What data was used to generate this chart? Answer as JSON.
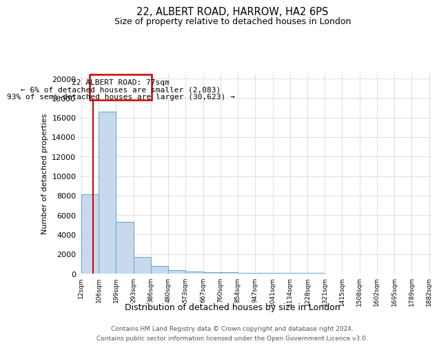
{
  "title": "22, ALBERT ROAD, HARROW, HA2 6PS",
  "subtitle": "Size of property relative to detached houses in London",
  "xlabel": "Distribution of detached houses by size in London",
  "ylabel": "Number of detached properties",
  "annotation_line1": "22 ALBERT ROAD: 77sqm",
  "annotation_line2": "← 6% of detached houses are smaller (2,083)",
  "annotation_line3": "93% of semi-detached houses are larger (30,623) →",
  "property_sqm": 77,
  "bar_left_edges": [
    12,
    106,
    199,
    293,
    386,
    480,
    573,
    667,
    760,
    854,
    947,
    1041,
    1134,
    1228,
    1321,
    1415,
    1508,
    1602,
    1695,
    1789
  ],
  "bar_widths": [
    94,
    93,
    94,
    93,
    94,
    93,
    94,
    93,
    94,
    93,
    94,
    93,
    94,
    93,
    94,
    93,
    94,
    93,
    94,
    93
  ],
  "bar_heights": [
    8100,
    16600,
    5300,
    1700,
    800,
    380,
    230,
    160,
    120,
    85,
    75,
    60,
    50,
    40,
    35,
    25,
    20,
    18,
    15,
    12
  ],
  "bar_color": "#c8d9ee",
  "bar_edge_color": "#6aaad4",
  "tick_labels": [
    "12sqm",
    "106sqm",
    "199sqm",
    "293sqm",
    "386sqm",
    "480sqm",
    "573sqm",
    "667sqm",
    "760sqm",
    "854sqm",
    "947sqm",
    "1041sqm",
    "1134sqm",
    "1228sqm",
    "1321sqm",
    "1415sqm",
    "1508sqm",
    "1602sqm",
    "1695sqm",
    "1789sqm",
    "1882sqm"
  ],
  "ylim": [
    0,
    20500
  ],
  "yticks": [
    0,
    2000,
    4000,
    6000,
    8000,
    10000,
    12000,
    14000,
    16000,
    18000,
    20000
  ],
  "grid_color": "#d0d0d0",
  "annotation_box_color": "#cc0000",
  "vline_color": "#cc0000",
  "footer_line1": "Contains HM Land Registry data © Crown copyright and database right 2024.",
  "footer_line2": "Contains public sector information licensed under the Open Government Licence v3.0.",
  "bg_color": "#ffffff"
}
